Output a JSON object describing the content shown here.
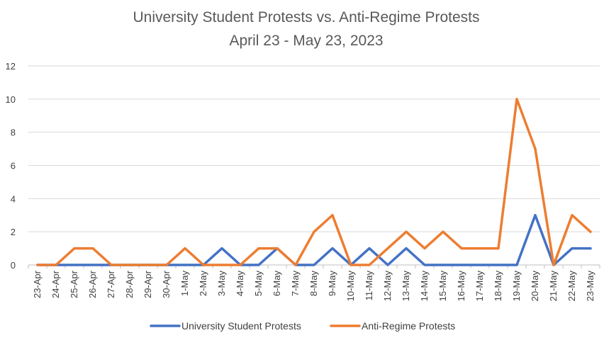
{
  "chart_data": {
    "type": "line",
    "title": "University Student Protests vs. Anti-Regime Protests",
    "subtitle": "April 23 - May 23, 2023",
    "xlabel": "",
    "ylabel": "",
    "ylim": [
      0,
      12
    ],
    "yticks": [
      0,
      2,
      4,
      6,
      8,
      10,
      12
    ],
    "grid": true,
    "legend_position": "bottom",
    "categories": [
      "23-Apr",
      "24-Apr",
      "25-Apr",
      "26-Apr",
      "27-Apr",
      "28-Apr",
      "29-Apr",
      "30-Apr",
      "1-May",
      "2-May",
      "3-May",
      "4-May",
      "5-May",
      "6-May",
      "7-May",
      "8-May",
      "9-May",
      "10-May",
      "11-May",
      "12-May",
      "13-May",
      "14-May",
      "15-May",
      "16-May",
      "17-May",
      "18-May",
      "19-May",
      "20-May",
      "21-May",
      "22-May",
      "23-May"
    ],
    "series": [
      {
        "name": "University Student Protests",
        "color": "#4472c4",
        "values": [
          0,
          0,
          0,
          0,
          0,
          0,
          0,
          0,
          0,
          0,
          1,
          0,
          0,
          1,
          0,
          0,
          1,
          0,
          1,
          0,
          1,
          0,
          0,
          0,
          0,
          0,
          0,
          3,
          0,
          1,
          1
        ]
      },
      {
        "name": "Anti-Regime Protests",
        "color": "#ed7d31",
        "values": [
          0,
          0,
          1,
          1,
          0,
          0,
          0,
          0,
          1,
          0,
          0,
          0,
          1,
          1,
          0,
          2,
          3,
          0,
          0,
          1,
          2,
          1,
          2,
          1,
          1,
          1,
          10,
          7,
          0,
          3,
          2
        ]
      }
    ]
  }
}
